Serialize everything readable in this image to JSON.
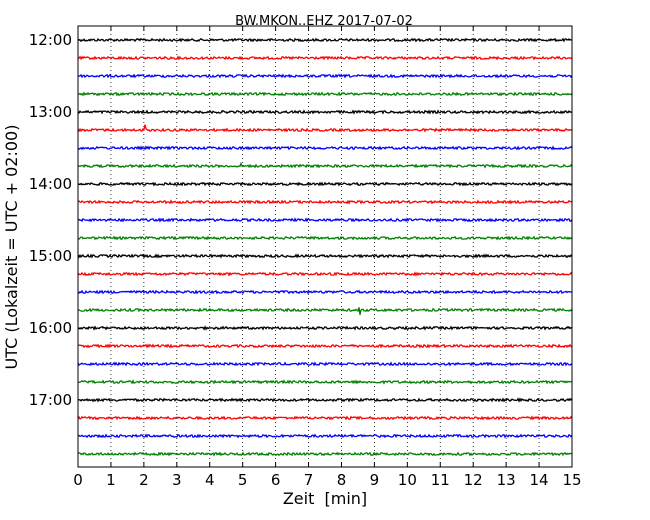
{
  "chart_data": {
    "type": "line",
    "title": "BW.MKON..EHZ 2017-07-02",
    "xlabel": "Zeit  [min]",
    "ylabel": "UTC (Lokalzeit = UTC + 02:00)",
    "xlim": [
      0,
      15
    ],
    "x_ticks": [
      "0",
      "1",
      "2",
      "3",
      "4",
      "5",
      "6",
      "7",
      "8",
      "9",
      "10",
      "11",
      "12",
      "13",
      "14",
      "15"
    ],
    "y_ticks": [
      "12:00",
      "13:00",
      "14:00",
      "15:00",
      "16:00",
      "17:00"
    ],
    "grid": true,
    "trace_interval_min": 15,
    "trace_colors": [
      "#000000",
      "#ff0000",
      "#0000ff",
      "#008000"
    ],
    "traces": [
      {
        "start": "12:00",
        "color": "#000000"
      },
      {
        "start": "12:15",
        "color": "#ff0000"
      },
      {
        "start": "12:30",
        "color": "#0000ff"
      },
      {
        "start": "12:45",
        "color": "#008000"
      },
      {
        "start": "13:00",
        "color": "#000000"
      },
      {
        "start": "13:15",
        "color": "#ff0000",
        "events": [
          {
            "t": 2.05,
            "amp": 3.2
          }
        ]
      },
      {
        "start": "13:30",
        "color": "#0000ff"
      },
      {
        "start": "13:45",
        "color": "#008000",
        "events": [
          {
            "t": 4.95,
            "amp": 0.6
          }
        ]
      },
      {
        "start": "14:00",
        "color": "#000000"
      },
      {
        "start": "14:15",
        "color": "#ff0000"
      },
      {
        "start": "14:30",
        "color": "#0000ff"
      },
      {
        "start": "14:45",
        "color": "#008000"
      },
      {
        "start": "15:00",
        "color": "#000000"
      },
      {
        "start": "15:15",
        "color": "#ff0000"
      },
      {
        "start": "15:30",
        "color": "#0000ff"
      },
      {
        "start": "15:45",
        "color": "#008000",
        "events": [
          {
            "t": 8.55,
            "amp": 2.4
          }
        ]
      },
      {
        "start": "16:00",
        "color": "#000000"
      },
      {
        "start": "16:15",
        "color": "#ff0000"
      },
      {
        "start": "16:30",
        "color": "#0000ff"
      },
      {
        "start": "16:45",
        "color": "#008000"
      },
      {
        "start": "17:00",
        "color": "#000000"
      },
      {
        "start": "17:15",
        "color": "#ff0000"
      },
      {
        "start": "17:30",
        "color": "#0000ff"
      },
      {
        "start": "17:45",
        "color": "#008000"
      }
    ]
  }
}
